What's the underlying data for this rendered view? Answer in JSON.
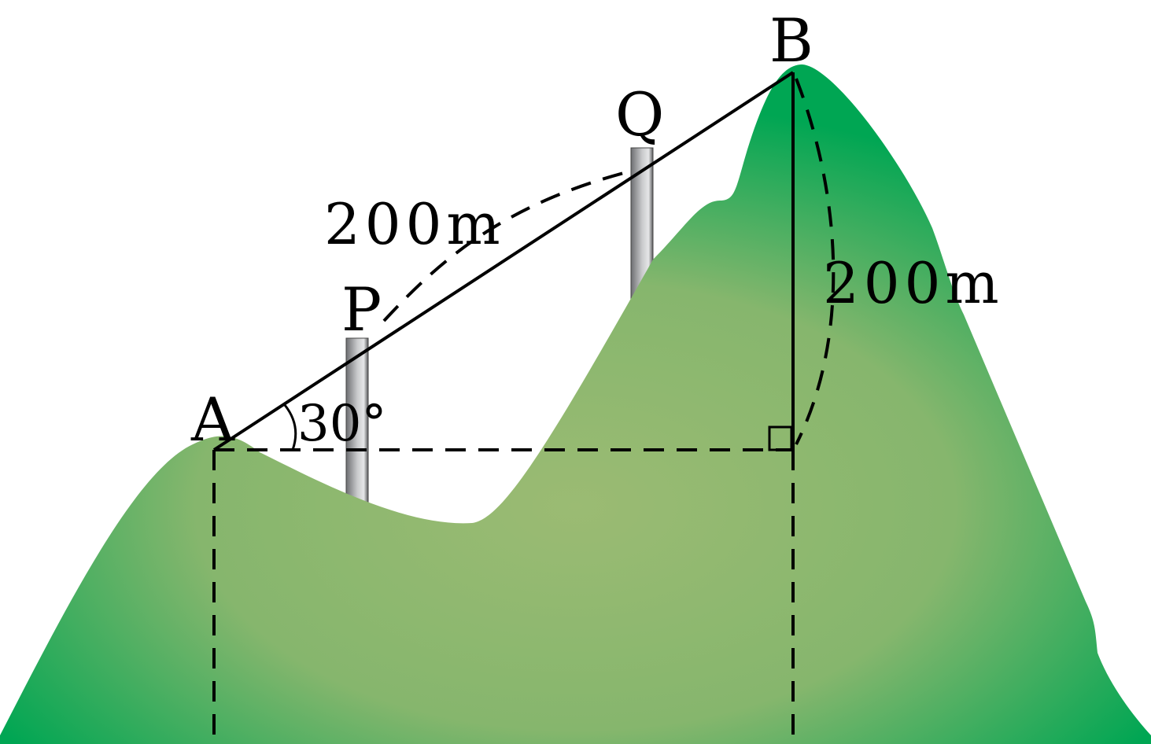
{
  "labels": {
    "point_a": "A",
    "point_b": "B",
    "point_p": "P",
    "point_q": "Q",
    "slope_length": "200m",
    "height": "200m",
    "angle": "30°"
  },
  "colors": {
    "mountain_dark": "#00a653",
    "mountain_light": "#9bbb73",
    "pole_dark": "#6d6e71",
    "pole_light": "#e6e7e8"
  }
}
